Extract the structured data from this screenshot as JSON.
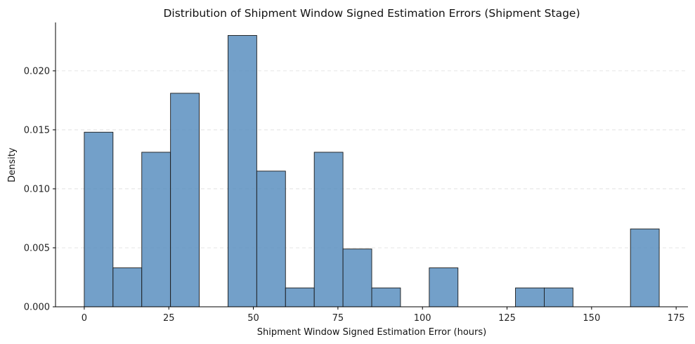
{
  "chart_data": {
    "type": "bar",
    "title": "Distribution of Shipment Window Signed Estimation Errors (Shipment Stage)",
    "xlabel": "Shipment Window Signed Estimation Error (hours)",
    "ylabel": "Density",
    "bin_edges": [
      0,
      8.5,
      17,
      25.5,
      34,
      42.5,
      51,
      59.5,
      68,
      76.5,
      85,
      93.5,
      102,
      110.5,
      119,
      127.5,
      136,
      144.5,
      153,
      161.5,
      170
    ],
    "values": [
      0.0148,
      0.0033,
      0.0131,
      0.0181,
      0,
      0.023,
      0.0115,
      0.0016,
      0.0131,
      0.0049,
      0.0016,
      0,
      0.0033,
      0,
      0,
      0.0016,
      0.0016,
      0,
      0,
      0.0066
    ],
    "xlim": [
      -8.5,
      178.5
    ],
    "ylim": [
      0,
      0.0241
    ],
    "x_ticks": [
      0,
      25,
      50,
      75,
      100,
      125,
      150,
      175
    ],
    "x_tick_labels": [
      "0",
      "25",
      "50",
      "75",
      "100",
      "125",
      "150",
      "175"
    ],
    "y_ticks": [
      0,
      0.005,
      0.01,
      0.015,
      0.02
    ],
    "y_tick_labels": [
      "0.000",
      "0.005",
      "0.010",
      "0.015",
      "0.020"
    ],
    "grid": "y-dashed",
    "bar_color": "#5b8fbf",
    "edge_color": "#1a1a1a"
  }
}
